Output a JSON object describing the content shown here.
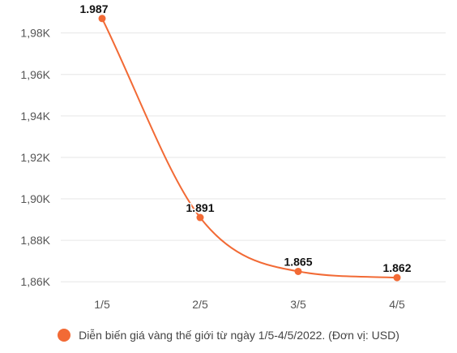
{
  "chart_data": {
    "type": "line",
    "categories": [
      "1/5",
      "2/5",
      "3/5",
      "4/5"
    ],
    "series": [
      {
        "name": "Diễn biến giá vàng thế giới từ ngày 1/5-4/5/2022. (Đơn vị: USD)",
        "values": [
          1987,
          1891,
          1865,
          1862
        ]
      }
    ],
    "data_labels": [
      "1.987",
      "1.891",
      "1.865",
      "1.862"
    ],
    "y_ticks": [
      {
        "value": 1860,
        "label": "1,86K"
      },
      {
        "value": 1880,
        "label": "1,88K"
      },
      {
        "value": 1900,
        "label": "1,90K"
      },
      {
        "value": 1920,
        "label": "1,92K"
      },
      {
        "value": 1940,
        "label": "1,94K"
      },
      {
        "value": 1960,
        "label": "1,96K"
      },
      {
        "value": 1980,
        "label": "1,98K"
      }
    ],
    "ylim": [
      1855,
      1992
    ],
    "grid": true,
    "legend_position": "bottom",
    "colors": {
      "line": "#f26a35",
      "grid": "#e6e6e6"
    }
  }
}
